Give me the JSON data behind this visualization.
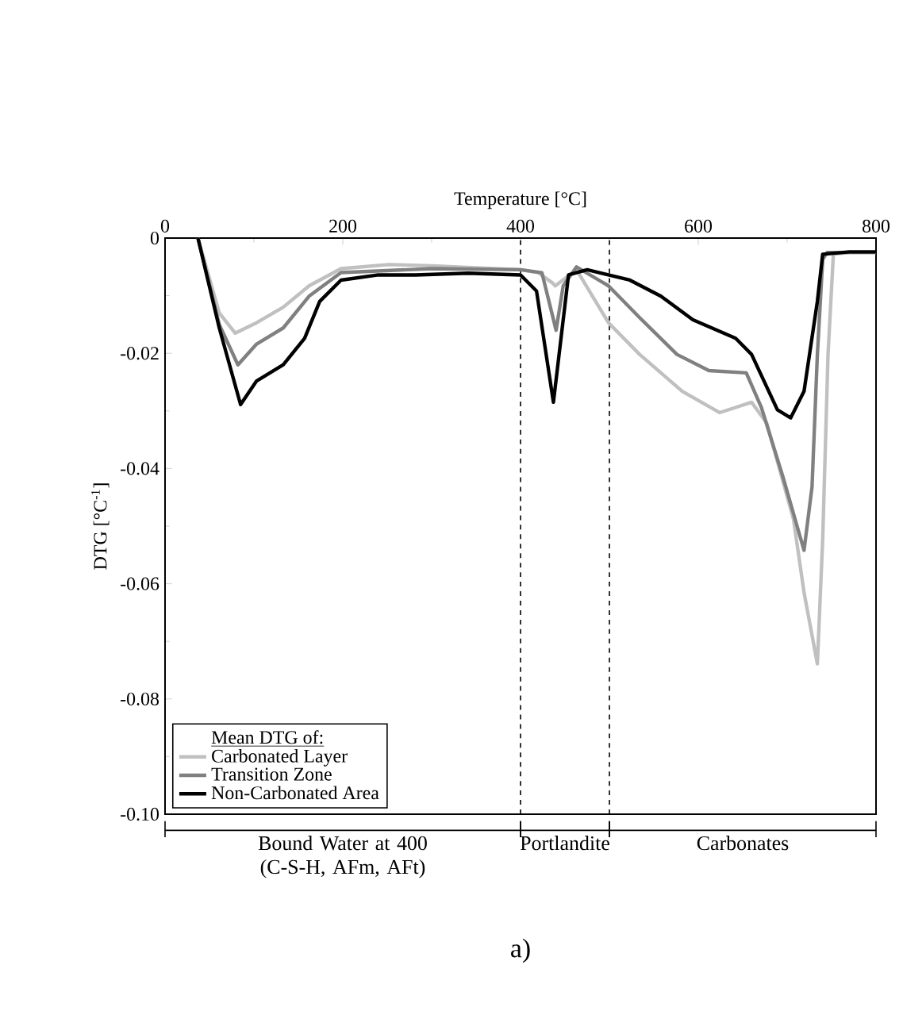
{
  "chart_data": {
    "type": "line",
    "xlabel": "Temperature [°C]",
    "ylabel": "DTG [°C$^{-1}$]",
    "legend_title": "Mean DTG of:",
    "xlim": [
      0,
      800
    ],
    "ylim": [
      -0.1,
      0
    ],
    "xticks": [
      0,
      200,
      400,
      600,
      800
    ],
    "yticks": [
      {
        "value": -0.1,
        "label": "-0.10"
      },
      -0.08,
      -0.06,
      -0.04,
      -0.02,
      0
    ],
    "legend": "bottom left",
    "marker": "none",
    "line_style": "solid",
    "grid": false,
    "series": [
      {
        "name": "Carbonated Layer",
        "color": "#c0c0c0",
        "x": [
          37,
          61,
          79,
          103,
          133,
          162,
          198,
          252,
          300,
          400,
          420,
          436,
          439,
          463,
          499,
          534,
          582,
          624,
          660,
          677,
          707,
          719,
          734,
          740,
          746,
          752,
          770,
          800
        ],
        "values": [
          0,
          -0.013,
          -0.0165,
          -0.0147,
          -0.012,
          -0.0083,
          -0.0053,
          -0.0046,
          -0.0048,
          -0.0055,
          -0.006,
          -0.0078,
          -0.0083,
          -0.0055,
          -0.0147,
          -0.0202,
          -0.0266,
          -0.0303,
          -0.0285,
          -0.0321,
          -0.0487,
          -0.0615,
          -0.0739,
          -0.0523,
          -0.0202,
          -0.0028,
          -0.0025,
          -0.0025
        ]
      },
      {
        "name": "Transition Zone",
        "color": "#808080",
        "x": [
          37,
          61,
          82,
          103,
          133,
          162,
          198,
          300,
          400,
          424,
          440,
          448,
          463,
          499,
          534,
          576,
          612,
          654,
          671,
          695,
          719,
          728,
          734,
          740,
          745,
          770,
          800
        ],
        "values": [
          0,
          -0.015,
          -0.022,
          -0.0184,
          -0.0156,
          -0.0101,
          -0.006,
          -0.0053,
          -0.0055,
          -0.006,
          -0.016,
          -0.0083,
          -0.005,
          -0.0083,
          -0.0138,
          -0.0202,
          -0.023,
          -0.0234,
          -0.0294,
          -0.0413,
          -0.0542,
          -0.0432,
          -0.0202,
          -0.0037,
          -0.0025,
          -0.0025,
          -0.0025
        ]
      },
      {
        "name": "Non-Carbonated Area",
        "color": "#000000",
        "x": [
          37,
          61,
          85,
          103,
          133,
          157,
          174,
          198,
          240,
          282,
          341,
          400,
          418,
          437,
          454,
          475,
          523,
          558,
          594,
          642,
          660,
          689,
          704,
          719,
          734,
          740,
          770,
          800
        ],
        "values": [
          0,
          -0.0156,
          -0.0289,
          -0.0248,
          -0.022,
          -0.0174,
          -0.011,
          -0.0073,
          -0.0064,
          -0.0064,
          -0.0061,
          -0.0064,
          -0.0092,
          -0.0285,
          -0.0064,
          -0.0055,
          -0.0073,
          -0.0101,
          -0.0142,
          -0.0174,
          -0.0202,
          -0.0298,
          -0.0312,
          -0.0266,
          -0.011,
          -0.0028,
          -0.0024,
          -0.0024
        ]
      }
    ],
    "ref_lines": [
      {
        "axis": "x",
        "value": 400,
        "color": "#000000",
        "line_style": "dashed"
      },
      {
        "axis": "x",
        "value": 500,
        "color": "#000000",
        "line_style": "dashed"
      }
    ],
    "annotations": [
      "Bound Water at 400 (C-S-H, AFm, AFt)",
      "Portlandite",
      "Carbonates",
      "a)"
    ]
  }
}
